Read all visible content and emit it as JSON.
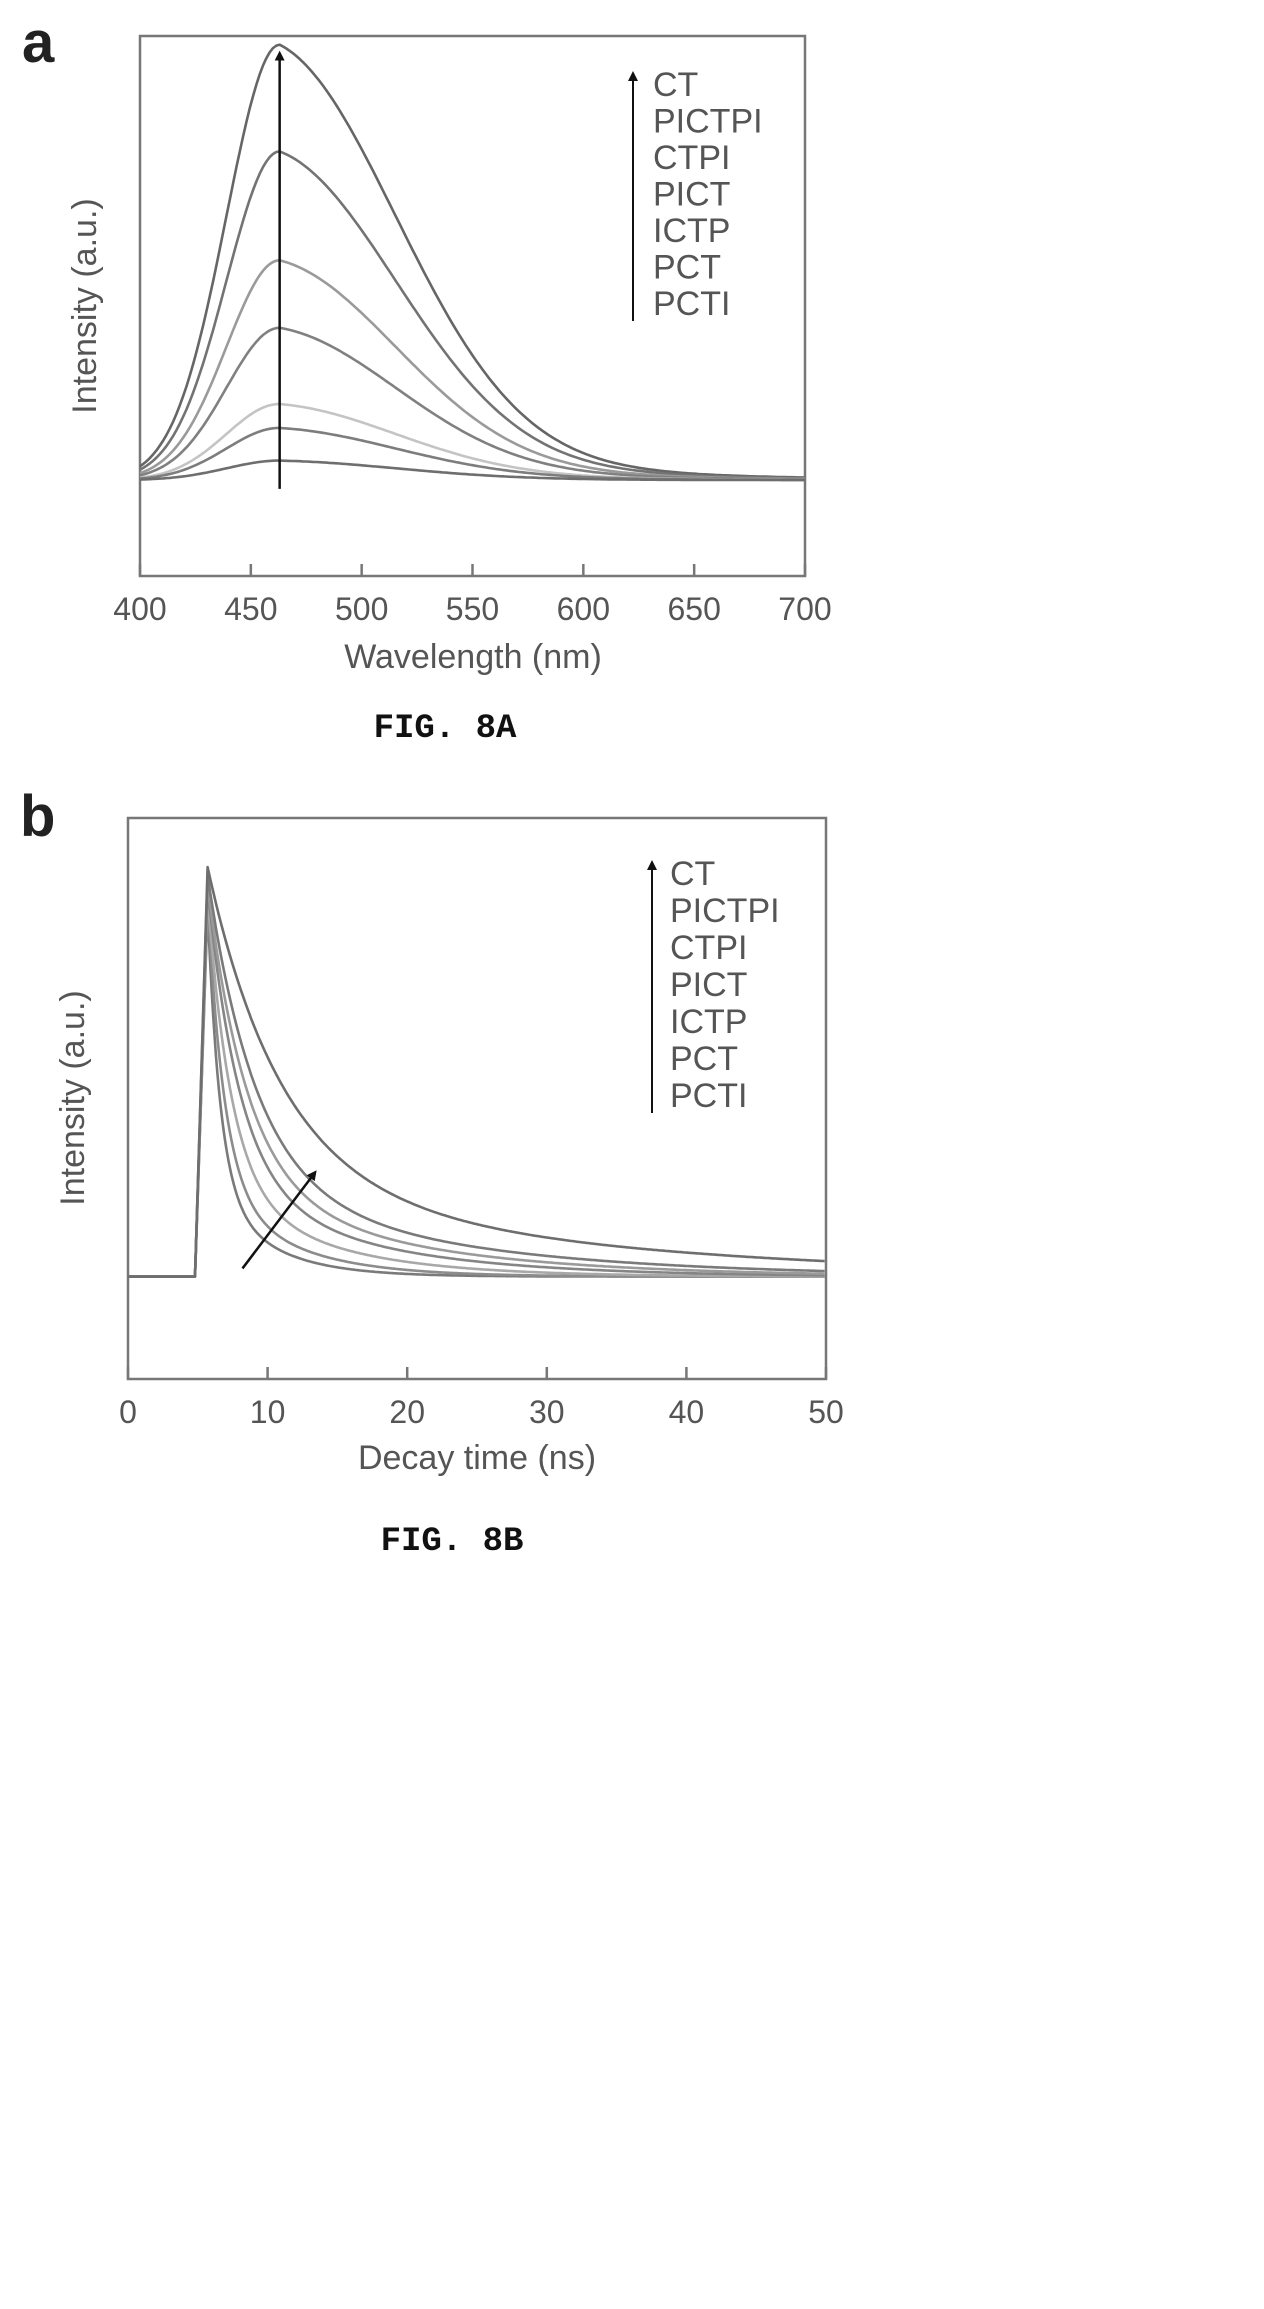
{
  "chart_data": [
    {
      "type": "line",
      "panel": "a",
      "caption": "FIG. 8A",
      "xlabel": "Wavelength (nm)",
      "ylabel": "Intensity (a.u.)",
      "xlim": [
        400,
        700
      ],
      "ylim": [
        -0.22,
        1.02
      ],
      "xticks": [
        400,
        450,
        500,
        550,
        600,
        650,
        700
      ],
      "yticks_shown": false,
      "legend_position": "top-right",
      "legend": [
        "CT",
        "PICTPI",
        "CTPI",
        "PICT",
        "ICTP",
        "PCT",
        "PCTI"
      ],
      "legend_arrow": "up",
      "peak_marker_x": 463,
      "peak_wavelength_nm": 463,
      "series": [
        {
          "name": "CT",
          "peak": 1.0,
          "color": "#666666"
        },
        {
          "name": "PICTPI",
          "peak": 0.755,
          "color": "#737373"
        },
        {
          "name": "CTPI",
          "peak": 0.505,
          "color": "#9a9a9a"
        },
        {
          "name": "PICT",
          "peak": 0.35,
          "color": "#808080"
        },
        {
          "name": "ICTP",
          "peak": 0.175,
          "color": "#c4c4c4"
        },
        {
          "name": "PCT",
          "peak": 0.12,
          "color": "#7d7d7d"
        },
        {
          "name": "PCTI",
          "peak": 0.045,
          "color": "#6e6e6e"
        }
      ]
    },
    {
      "type": "line",
      "panel": "b",
      "caption": "FIG. 8B",
      "xlabel": "Decay time (ns)",
      "ylabel": "Intensity (a.u.)",
      "xlim": [
        0,
        50
      ],
      "ylim": [
        -0.25,
        1.12
      ],
      "xticks": [
        0,
        10,
        20,
        30,
        40,
        50
      ],
      "yticks_shown": false,
      "legend_position": "top-right",
      "legend": [
        "CT",
        "PICTPI",
        "CTPI",
        "PICT",
        "ICTP",
        "PCT",
        "PCTI"
      ],
      "legend_arrow": "up",
      "rise_time_ns": 4.8,
      "peak_time_ns": 5.7,
      "arrow_from": [
        8.2,
        0.02
      ],
      "arrow_to": [
        13.3,
        0.25
      ],
      "series": [
        {
          "name": "CT",
          "peak": 1.0,
          "tau_ns": 5.2,
          "color": "#6e6e6e"
        },
        {
          "name": "PICTPI",
          "peak": 0.98,
          "tau_ns": 3.4,
          "color": "#7a7a7a"
        },
        {
          "name": "CTPI",
          "peak": 0.96,
          "tau_ns": 2.8,
          "color": "#9a9a9a"
        },
        {
          "name": "PICT",
          "peak": 0.95,
          "tau_ns": 2.3,
          "color": "#858585"
        },
        {
          "name": "ICTP",
          "peak": 0.93,
          "tau_ns": 1.7,
          "color": "#a8a8a8"
        },
        {
          "name": "PCT",
          "peak": 0.92,
          "tau_ns": 1.2,
          "color": "#8c8c8c"
        },
        {
          "name": "PCTI",
          "peak": 0.9,
          "tau_ns": 0.9,
          "color": "#7a7a7a"
        }
      ]
    }
  ]
}
